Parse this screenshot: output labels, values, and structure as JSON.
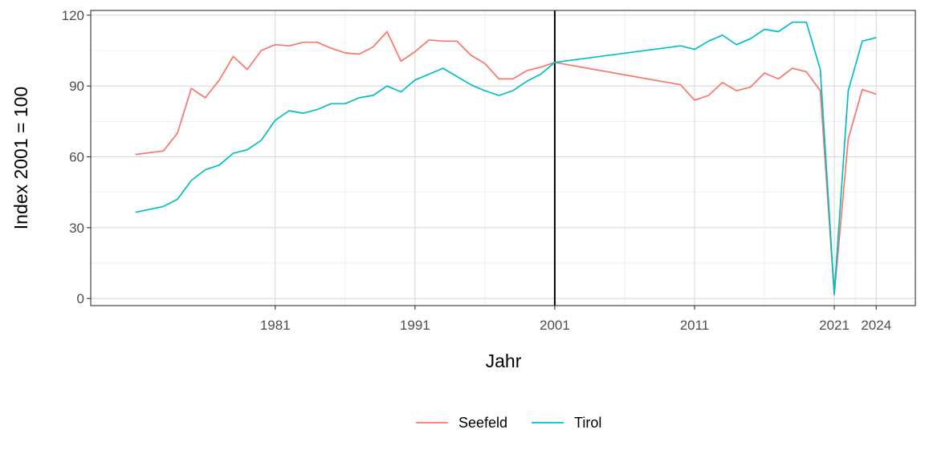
{
  "chart_data": {
    "type": "line",
    "xlabel": "Jahr",
    "ylabel": "Index 2001 = 100",
    "xlim": [
      1967.8,
      2026.8
    ],
    "ylim": [
      -3,
      122
    ],
    "x_ticks": [
      1981,
      1991,
      2001,
      2011,
      2021,
      2024
    ],
    "y_ticks": [
      0,
      30,
      60,
      90,
      120
    ],
    "reference_line_x": 2001,
    "grid": true,
    "legend_position": "bottom",
    "colors": {
      "Seefeld": "#F8766D",
      "Tirol": "#00BFC4"
    },
    "series": [
      {
        "name": "Seefeld",
        "points": [
          [
            1971,
            61
          ],
          [
            1973,
            62.5
          ],
          [
            1974,
            70
          ],
          [
            1975,
            89
          ],
          [
            1976,
            85
          ],
          [
            1977,
            92.5
          ],
          [
            1978,
            102.5
          ],
          [
            1979,
            97
          ],
          [
            1980,
            105
          ],
          [
            1981,
            107.5
          ],
          [
            1982,
            107
          ],
          [
            1983,
            108.5
          ],
          [
            1984,
            108.5
          ],
          [
            1985,
            106
          ],
          [
            1986,
            104
          ],
          [
            1987,
            103.5
          ],
          [
            1988,
            106.5
          ],
          [
            1989,
            113
          ],
          [
            1990,
            100.5
          ],
          [
            1991,
            104.5
          ],
          [
            1992,
            109.5
          ],
          [
            1993,
            109
          ],
          [
            1994,
            109
          ],
          [
            1995,
            103
          ],
          [
            1996,
            99.5
          ],
          [
            1997,
            93
          ],
          [
            1998,
            93
          ],
          [
            1999,
            96.5
          ],
          [
            2000,
            98
          ],
          [
            2001,
            100
          ],
          [
            2010,
            90.5
          ],
          [
            2011,
            84
          ],
          [
            2012,
            86
          ],
          [
            2013,
            91.5
          ],
          [
            2014,
            88
          ],
          [
            2015,
            89.5
          ],
          [
            2016,
            95.5
          ],
          [
            2017,
            93
          ],
          [
            2018,
            97.5
          ],
          [
            2019,
            96
          ],
          [
            2020,
            88
          ],
          [
            2021,
            1.5
          ],
          [
            2022,
            67.5
          ],
          [
            2023,
            88.5
          ],
          [
            2024,
            86.5
          ]
        ]
      },
      {
        "name": "Tirol",
        "points": [
          [
            1971,
            36.5
          ],
          [
            1973,
            39
          ],
          [
            1974,
            42
          ],
          [
            1975,
            50
          ],
          [
            1976,
            54.5
          ],
          [
            1977,
            56.5
          ],
          [
            1978,
            61.5
          ],
          [
            1979,
            63
          ],
          [
            1980,
            67
          ],
          [
            1981,
            75.5
          ],
          [
            1982,
            79.5
          ],
          [
            1983,
            78.5
          ],
          [
            1984,
            80
          ],
          [
            1985,
            82.5
          ],
          [
            1986,
            82.5
          ],
          [
            1987,
            85
          ],
          [
            1988,
            86
          ],
          [
            1989,
            90
          ],
          [
            1990,
            87.5
          ],
          [
            1991,
            92.5
          ],
          [
            1993,
            97.5
          ],
          [
            1994,
            94
          ],
          [
            1995,
            90.5
          ],
          [
            1996,
            88
          ],
          [
            1997,
            86
          ],
          [
            1998,
            88
          ],
          [
            1999,
            92
          ],
          [
            2000,
            95
          ],
          [
            2001,
            100
          ],
          [
            2010,
            107
          ],
          [
            2011,
            105.5
          ],
          [
            2012,
            109
          ],
          [
            2013,
            111.5
          ],
          [
            2014,
            107.5
          ],
          [
            2015,
            110
          ],
          [
            2016,
            114
          ],
          [
            2017,
            113
          ],
          [
            2018,
            117
          ],
          [
            2019,
            117
          ],
          [
            2020,
            97
          ],
          [
            2021,
            2
          ],
          [
            2022,
            88
          ],
          [
            2023,
            109
          ],
          [
            2024,
            110.5
          ]
        ]
      }
    ]
  }
}
